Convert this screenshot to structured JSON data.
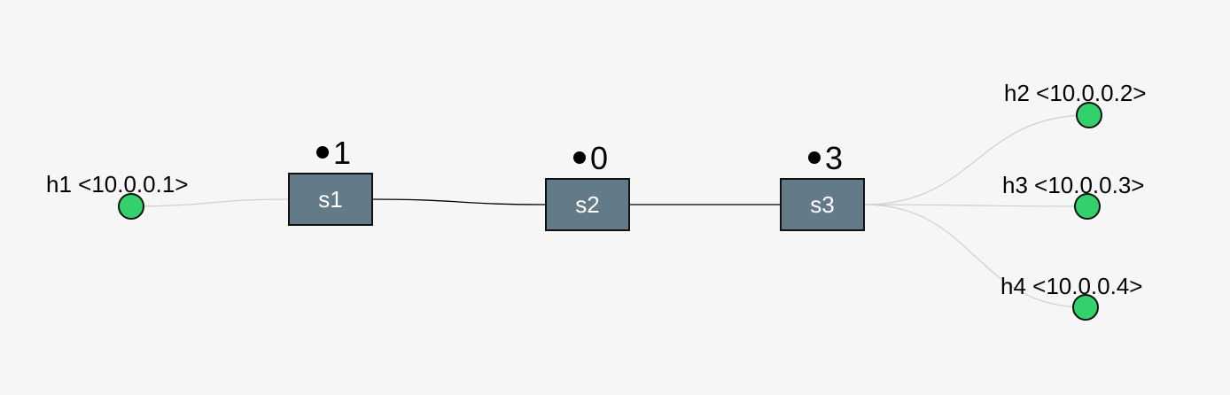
{
  "colors": {
    "background": "#f6f6f6",
    "host_fill": "#33d16b",
    "host_stroke": "#111111",
    "switch_fill": "#637b88",
    "switch_stroke": "#111111",
    "switch_text": "#ffffff",
    "switch_link": "#000000",
    "host_link": "#cfcfcf"
  },
  "switches": [
    {
      "id": "s1",
      "label": "s1",
      "badge": "1"
    },
    {
      "id": "s2",
      "label": "s2",
      "badge": "0"
    },
    {
      "id": "s3",
      "label": "s3",
      "badge": "3"
    }
  ],
  "hosts": [
    {
      "id": "h1",
      "label": "h1 <10.0.0.1>"
    },
    {
      "id": "h2",
      "label": "h2 <10.0.0.2>"
    },
    {
      "id": "h3",
      "label": "h3 <10.0.0.3>"
    },
    {
      "id": "h4",
      "label": "h4 <10.0.0.4>"
    }
  ],
  "links": [
    {
      "from": "h1",
      "to": "s1",
      "kind": "host"
    },
    {
      "from": "s1",
      "to": "s2",
      "kind": "switch"
    },
    {
      "from": "s2",
      "to": "s3",
      "kind": "switch"
    },
    {
      "from": "s3",
      "to": "h2",
      "kind": "host"
    },
    {
      "from": "s3",
      "to": "h3",
      "kind": "host"
    },
    {
      "from": "s3",
      "to": "h4",
      "kind": "host"
    }
  ]
}
